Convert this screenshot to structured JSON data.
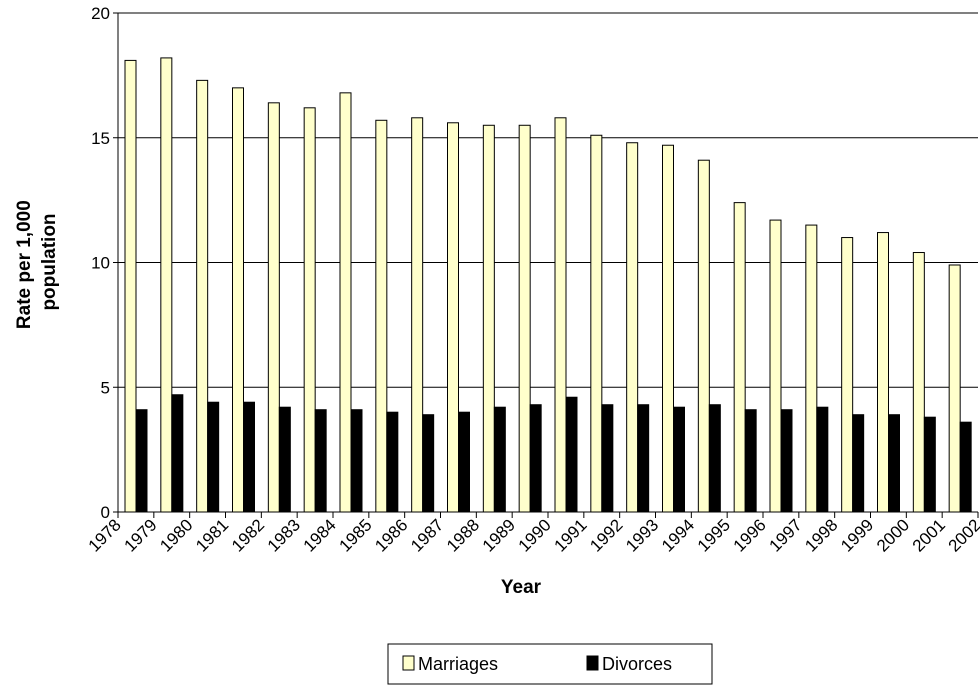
{
  "chart_data": {
    "type": "bar",
    "title": "",
    "xlabel": "Year",
    "ylabel_lines": [
      "Rate per 1,000",
      "population"
    ],
    "ylim": [
      0,
      20
    ],
    "yticks": [
      "0",
      "5",
      "10",
      "15",
      "20"
    ],
    "ytick_values": [
      0,
      5,
      10,
      15,
      20
    ],
    "grid": true,
    "legend_position": "bottom-center",
    "x_tick_labels": [
      "1978",
      "1979",
      "1980",
      "1981",
      "1982",
      "1983",
      "1984",
      "1985",
      "1986",
      "1987",
      "1988",
      "1989",
      "1990",
      "1991",
      "1992",
      "1993",
      "1994",
      "1995",
      "1996",
      "1997",
      "1998",
      "1999",
      "2000",
      "2001",
      "2002"
    ],
    "categories": [
      "1978",
      "1979",
      "1980",
      "1981",
      "1982",
      "1983",
      "1984",
      "1985",
      "1986",
      "1987",
      "1988",
      "1989",
      "1990",
      "1991",
      "1992",
      "1993",
      "1994",
      "1995",
      "1996",
      "1997",
      "1998",
      "1999",
      "2000",
      "2001"
    ],
    "series": [
      {
        "name": "Marriages",
        "color": "#FFFFCC",
        "values": [
          18.1,
          18.2,
          17.3,
          17.0,
          16.4,
          16.2,
          16.8,
          15.7,
          15.8,
          15.6,
          15.5,
          15.5,
          15.8,
          15.1,
          14.8,
          14.7,
          14.1,
          12.4,
          11.7,
          11.5,
          11.0,
          11.2,
          10.4,
          9.9
        ]
      },
      {
        "name": "Divorces",
        "color": "#000000",
        "values": [
          4.1,
          4.7,
          4.4,
          4.4,
          4.2,
          4.1,
          4.1,
          4.0,
          3.9,
          4.0,
          4.2,
          4.3,
          4.6,
          4.3,
          4.3,
          4.2,
          4.3,
          4.1,
          4.1,
          4.2,
          3.9,
          3.9,
          3.8,
          3.6
        ]
      }
    ]
  }
}
